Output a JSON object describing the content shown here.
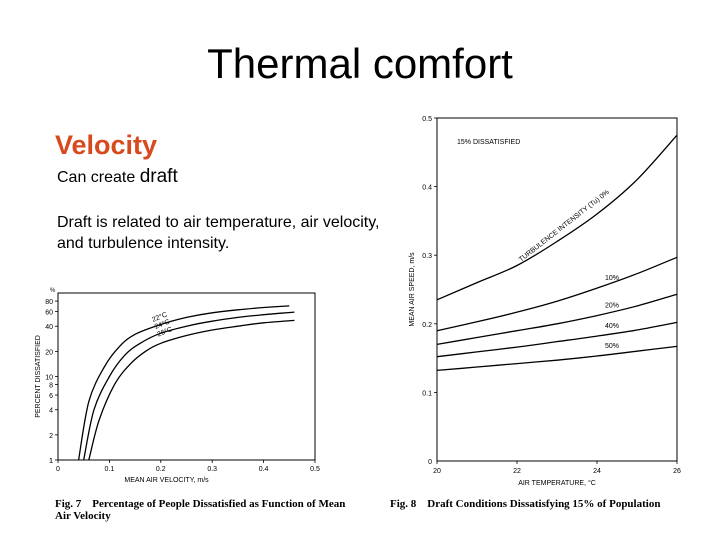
{
  "slide": {
    "title": "Thermal comfort",
    "subheading": "Velocity",
    "line1_prefix": "Can create ",
    "line1_emph": "draft",
    "paragraph": "Draft is related to air temperature, air velocity, and turbulence intensity."
  },
  "chart_data": [
    {
      "type": "line",
      "figure_label": "Fig. 7",
      "caption": "Percentage of People Dissatisfied as Function of Mean Air Velocity",
      "xlabel": "MEAN AIR VELOCITY, m/s",
      "ylabel": "PERCENT DISSATISFIED",
      "y_unit": "%",
      "xlim": [
        0,
        0.5
      ],
      "ylim": [
        1,
        100
      ],
      "y_scale": "log",
      "x_ticks": [
        "0",
        "0.1",
        "0.2",
        "0.3",
        "0.4",
        "0.5"
      ],
      "y_ticks": [
        1,
        2,
        4,
        6,
        8,
        10,
        20,
        40,
        60,
        80
      ],
      "series": [
        {
          "name": "22°C",
          "x": [
            0.04,
            0.06,
            0.09,
            0.12,
            0.15,
            0.2,
            0.25,
            0.3,
            0.35,
            0.4,
            0.45
          ],
          "y": [
            1,
            5,
            13,
            23,
            32,
            42,
            51,
            58,
            63,
            67,
            70
          ]
        },
        {
          "name": "24°C",
          "x": [
            0.05,
            0.07,
            0.1,
            0.13,
            0.16,
            0.2,
            0.25,
            0.3,
            0.35,
            0.4,
            0.46
          ],
          "y": [
            1,
            4,
            10,
            18,
            25,
            33,
            40,
            46,
            51,
            55,
            59
          ]
        },
        {
          "name": "26°C",
          "x": [
            0.06,
            0.08,
            0.11,
            0.14,
            0.17,
            0.2,
            0.25,
            0.3,
            0.35,
            0.4,
            0.46
          ],
          "y": [
            1,
            3,
            8,
            14,
            20,
            25,
            31,
            36,
            40,
            44,
            47
          ]
        }
      ]
    },
    {
      "type": "line",
      "figure_label": "Fig. 8",
      "caption": "Draft Conditions Dissatisfying 15% of Population",
      "xlabel": "AIR TEMPERATURE, °C",
      "ylabel": "MEAN AIR SPEED, m/s",
      "annotation": "15% DISSATISFIED",
      "xlim": [
        20,
        26
      ],
      "ylim": [
        0,
        0.5
      ],
      "x_ticks": [
        "20",
        "22",
        "24",
        "26"
      ],
      "y_ticks": [
        "0.1",
        "0.2",
        "0.3",
        "0.4",
        "0.5"
      ],
      "turbulence_label": "TURBULENCE INTENSITY (Tu) 0%",
      "series": [
        {
          "name": "0%",
          "x": [
            20,
            21,
            22,
            23,
            24,
            25,
            26
          ],
          "y": [
            0.235,
            0.26,
            0.285,
            0.32,
            0.36,
            0.41,
            0.475
          ]
        },
        {
          "name": "10%",
          "x": [
            20,
            21,
            22,
            23,
            24,
            25,
            26
          ],
          "y": [
            0.19,
            0.203,
            0.217,
            0.233,
            0.252,
            0.273,
            0.297
          ]
        },
        {
          "name": "20%",
          "x": [
            20,
            21,
            22,
            23,
            24,
            25,
            26
          ],
          "y": [
            0.17,
            0.18,
            0.19,
            0.2,
            0.212,
            0.226,
            0.243
          ]
        },
        {
          "name": "40%",
          "x": [
            20,
            21,
            22,
            23,
            24,
            25,
            26
          ],
          "y": [
            0.152,
            0.159,
            0.166,
            0.174,
            0.182,
            0.191,
            0.202
          ]
        },
        {
          "name": "50%",
          "x": [
            20,
            21,
            22,
            23,
            24,
            25,
            26
          ],
          "y": [
            0.132,
            0.137,
            0.142,
            0.147,
            0.153,
            0.16,
            0.167
          ]
        }
      ]
    }
  ]
}
